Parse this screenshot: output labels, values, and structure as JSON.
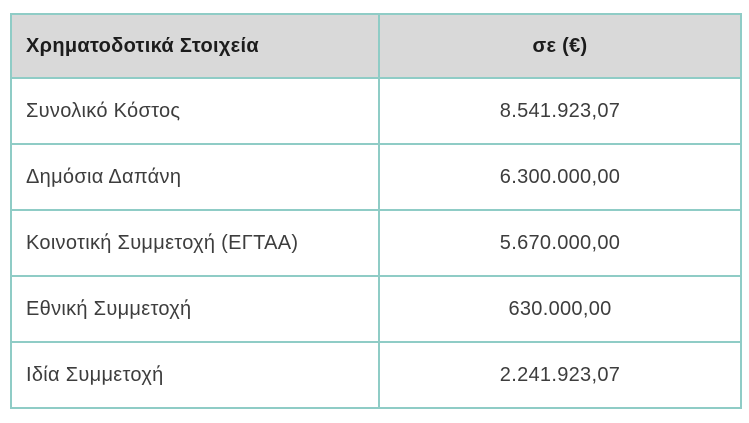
{
  "table": {
    "header": {
      "col1": "Χρηματοδοτικά Στοιχεία",
      "col2": "σε (€)"
    },
    "rows": [
      {
        "label": "Συνολικό Κόστος",
        "value": "8.541.923,07"
      },
      {
        "label": "Δημόσια Δαπάνη",
        "value": "6.300.000,00"
      },
      {
        "label": "Κοινοτική Συμμετοχή (ΕΓΤΑΑ)",
        "value": "5.670.000,00"
      },
      {
        "label": "Εθνική Συμμετοχή",
        "value": "630.000,00"
      },
      {
        "label": "Ιδία Συμμετοχή",
        "value": "2.241.923,07"
      }
    ],
    "colors": {
      "border": "#8fccc6",
      "header_bg": "#d9d9d9",
      "text": "#3d3d3d"
    }
  }
}
